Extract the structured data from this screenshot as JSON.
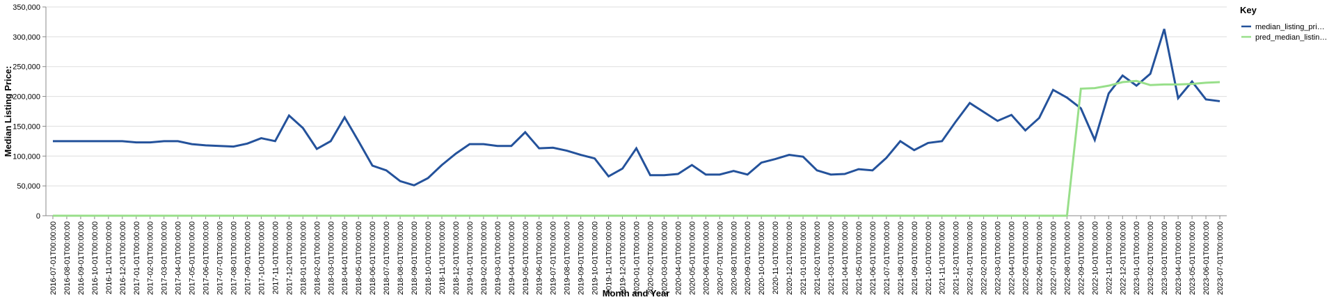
{
  "chart_data": {
    "type": "line",
    "x_label": "Month and Year",
    "y_label": "Median Listing Price:",
    "legend_title": "Key",
    "categories": [
      "2016-07-01T00:00:00",
      "2016-08-01T00:00:00",
      "2016-09-01T00:00:00",
      "2016-10-01T00:00:00",
      "2016-11-01T00:00:00",
      "2016-12-01T00:00:00",
      "2017-01-01T00:00:00",
      "2017-02-01T00:00:00",
      "2017-03-01T00:00:00",
      "2017-04-01T00:00:00",
      "2017-05-01T00:00:00",
      "2017-06-01T00:00:00",
      "2017-07-01T00:00:00",
      "2017-08-01T00:00:00",
      "2017-09-01T00:00:00",
      "2017-10-01T00:00:00",
      "2017-11-01T00:00:00",
      "2017-12-01T00:00:00",
      "2018-01-01T00:00:00",
      "2018-02-01T00:00:00",
      "2018-03-01T00:00:00",
      "2018-04-01T00:00:00",
      "2018-05-01T00:00:00",
      "2018-06-01T00:00:00",
      "2018-07-01T00:00:00",
      "2018-08-01T00:00:00",
      "2018-09-01T00:00:00",
      "2018-10-01T00:00:00",
      "2018-11-01T00:00:00",
      "2018-12-01T00:00:00",
      "2019-01-01T00:00:00",
      "2019-02-01T00:00:00",
      "2019-03-01T00:00:00",
      "2019-04-01T00:00:00",
      "2019-05-01T00:00:00",
      "2019-06-01T00:00:00",
      "2019-07-01T00:00:00",
      "2019-08-01T00:00:00",
      "2019-09-01T00:00:00",
      "2019-10-01T00:00:00",
      "2019-11-01T00:00:00",
      "2019-12-01T00:00:00",
      "2020-01-01T00:00:00",
      "2020-02-01T00:00:00",
      "2020-03-01T00:00:00",
      "2020-04-01T00:00:00",
      "2020-05-01T00:00:00",
      "2020-06-01T00:00:00",
      "2020-07-01T00:00:00",
      "2020-08-01T00:00:00",
      "2020-09-01T00:00:00",
      "2020-10-01T00:00:00",
      "2020-11-01T00:00:00",
      "2020-12-01T00:00:00",
      "2021-01-01T00:00:00",
      "2021-02-01T00:00:00",
      "2021-03-01T00:00:00",
      "2021-04-01T00:00:00",
      "2021-05-01T00:00:00",
      "2021-06-01T00:00:00",
      "2021-07-01T00:00:00",
      "2021-08-01T00:00:00",
      "2021-09-01T00:00:00",
      "2021-10-01T00:00:00",
      "2021-11-01T00:00:00",
      "2021-12-01T00:00:00",
      "2022-01-01T00:00:00",
      "2022-02-01T00:00:00",
      "2022-03-01T00:00:00",
      "2022-04-01T00:00:00",
      "2022-05-01T00:00:00",
      "2022-06-01T00:00:00",
      "2022-07-01T00:00:00",
      "2022-08-01T00:00:00",
      "2022-09-01T00:00:00",
      "2022-10-01T00:00:00",
      "2022-11-01T00:00:00",
      "2022-12-01T00:00:00",
      "2023-01-01T00:00:00",
      "2023-02-01T00:00:00",
      "2023-03-01T00:00:00",
      "2023-04-01T00:00:00",
      "2023-05-01T00:00:00",
      "2023-06-01T00:00:00",
      "2023-07-01T00:00:00"
    ],
    "series": [
      {
        "name": "median_listing_pri…",
        "color": "#24529b",
        "values": [
          125000,
          125000,
          125000,
          125000,
          125000,
          125000,
          123000,
          123000,
          125000,
          125000,
          120000,
          118000,
          117000,
          116000,
          121000,
          130000,
          125000,
          168000,
          147000,
          112000,
          125000,
          165000,
          125000,
          84000,
          76000,
          58000,
          51000,
          63000,
          85000,
          104000,
          120000,
          120000,
          117000,
          117000,
          140000,
          113000,
          114000,
          109000,
          102000,
          96000,
          66000,
          79000,
          113000,
          68000,
          68000,
          70000,
          85000,
          69000,
          69000,
          75000,
          69000,
          89000,
          95000,
          102000,
          99000,
          76000,
          69000,
          70000,
          78000,
          76000,
          97000,
          125000,
          110000,
          122000,
          125000,
          158000,
          189000,
          174000,
          159000,
          169000,
          143000,
          164000,
          211000,
          198000,
          180000,
          127000,
          205000,
          235000,
          218000,
          238000,
          313000,
          197000,
          225000,
          195000,
          192000
        ]
      },
      {
        "name": "pred_median_listin…",
        "color": "#98df8a",
        "values": [
          0,
          0,
          0,
          0,
          0,
          0,
          0,
          0,
          0,
          0,
          0,
          0,
          0,
          0,
          0,
          0,
          0,
          0,
          0,
          0,
          0,
          0,
          0,
          0,
          0,
          0,
          0,
          0,
          0,
          0,
          0,
          0,
          0,
          0,
          0,
          0,
          0,
          0,
          0,
          0,
          0,
          0,
          0,
          0,
          0,
          0,
          0,
          0,
          0,
          0,
          0,
          0,
          0,
          0,
          0,
          0,
          0,
          0,
          0,
          0,
          0,
          0,
          0,
          0,
          0,
          0,
          0,
          0,
          0,
          0,
          0,
          0,
          0,
          0,
          213000,
          214000,
          218000,
          224000,
          226000,
          219000,
          220000,
          220000,
          221000,
          223000,
          224000
        ]
      }
    ],
    "ylim": [
      0,
      350000
    ],
    "yticks": [
      0,
      {
        "value": 50000,
        "label": "50,000"
      },
      {
        "value": 100000,
        "label": "100,000"
      },
      {
        "value": 150000,
        "label": "150,000"
      },
      {
        "value": 200000,
        "label": "200,000"
      },
      {
        "value": 250000,
        "label": "250,000"
      },
      {
        "value": 300000,
        "label": "300,000"
      },
      {
        "value": 350000,
        "label": "350,000"
      }
    ],
    "grid": true,
    "legend_position": "right"
  }
}
